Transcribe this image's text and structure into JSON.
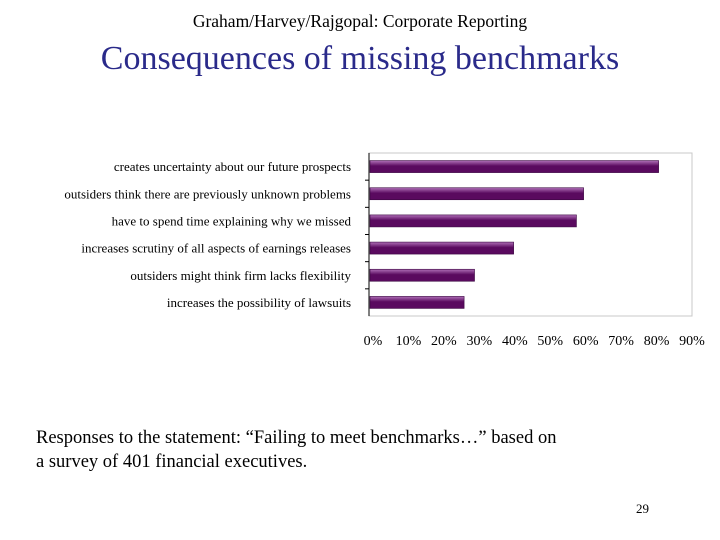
{
  "header": "Graham/Harvey/Rajgopal: Corporate Reporting",
  "title": "Consequences of missing benchmarks",
  "chart_data": {
    "type": "bar",
    "orientation": "horizontal",
    "categories": [
      "creates uncertainty about our future prospects",
      "outsiders think there are previously unknown problems",
      "have to spend time explaining why we missed",
      "increases scrutiny of all aspects of earnings releases",
      "outsiders might think firm lacks flexibility",
      "increases the possibility of lawsuits"
    ],
    "values": [
      80.7,
      59.8,
      57.8,
      40.3,
      29.4,
      26.5
    ],
    "xlim": [
      0,
      90
    ],
    "xticks": [
      "0%",
      "10%",
      "20%",
      "30%",
      "40%",
      "50%",
      "60%",
      "70%",
      "80%",
      "90%"
    ],
    "legend": "none",
    "grid": false,
    "bar_color": "#5a0a5f",
    "bar_highlight": "#b070b8"
  },
  "caption_line1": "Responses to the statement: “Failing to meet benchmarks…” based on",
  "caption_line2": "a survey of 401 financial executives.",
  "page_number": "29"
}
